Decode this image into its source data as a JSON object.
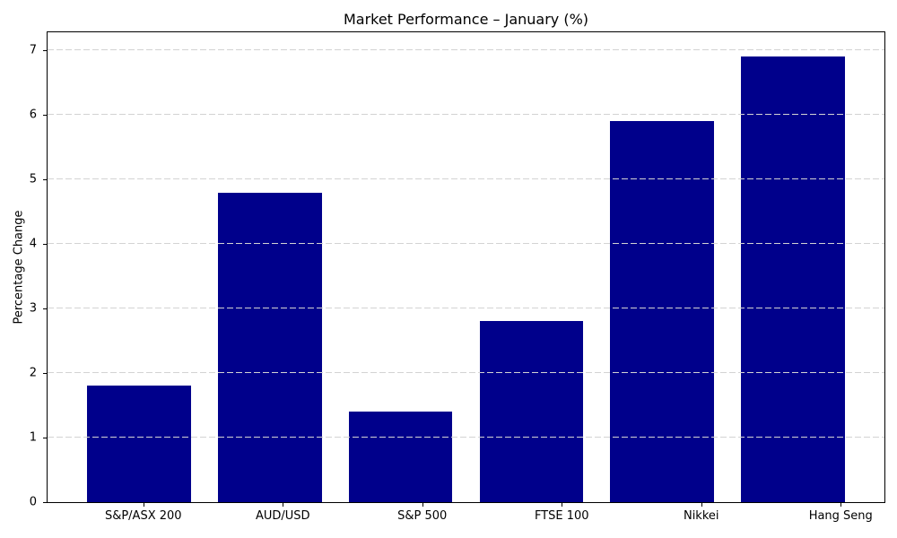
{
  "chart_data": {
    "type": "bar",
    "title": "Market Performance – January (%)",
    "ylabel": "Percentage Change",
    "xlabel": "",
    "categories": [
      "S&P/ASX 200",
      "AUD/USD",
      "S&P 500",
      "FTSE 100",
      "Nikkei",
      "Hang Seng"
    ],
    "values": [
      1.8,
      4.8,
      1.4,
      2.8,
      5.9,
      6.9
    ],
    "ylim": [
      0,
      7.28
    ],
    "yticks": [
      0,
      1,
      2,
      3,
      4,
      5,
      6,
      7
    ],
    "bar_color": "#00008B",
    "grid": {
      "axis": "y",
      "style": "dashed",
      "color": "#d3d3d3"
    },
    "legend_position": "none",
    "background": "#ffffff",
    "spine_color": "#000000"
  }
}
